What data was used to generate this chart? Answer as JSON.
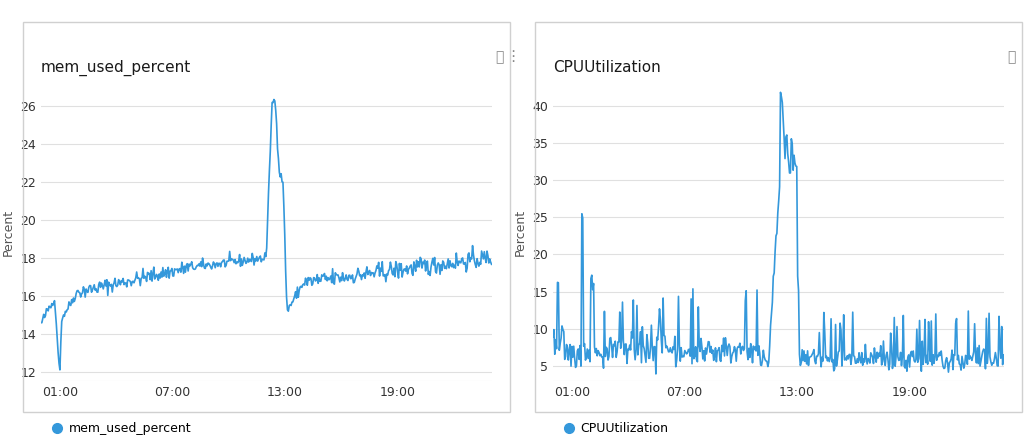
{
  "panel1_title": "mem_used_percent",
  "panel1_ylabel": "Percent",
  "panel1_legend": "mem_used_percent",
  "panel1_yticks": [
    12,
    14,
    16,
    18,
    20,
    22,
    24,
    26
  ],
  "panel1_ylim": [
    11.5,
    27.2
  ],
  "panel2_title": "CPUUtilization",
  "panel2_ylabel": "Percent",
  "panel2_legend": "CPUUtilization",
  "panel2_yticks": [
    5,
    10,
    15,
    20,
    25,
    30,
    35,
    40
  ],
  "panel2_ylim": [
    3.0,
    43.0
  ],
  "xtick_labels": [
    "01:00",
    "07:00",
    "13:00",
    "19:00"
  ],
  "xtick_positions": [
    1,
    7,
    13,
    19
  ],
  "line_color": "#3498db",
  "bg_color": "#ffffff",
  "panel_bg": "#ffffff",
  "grid_color": "#e0e0e0",
  "border_color": "#d0d0d0",
  "title_fontsize": 11,
  "label_fontsize": 9,
  "tick_fontsize": 9,
  "legend_fontsize": 9,
  "line_width": 1.2
}
